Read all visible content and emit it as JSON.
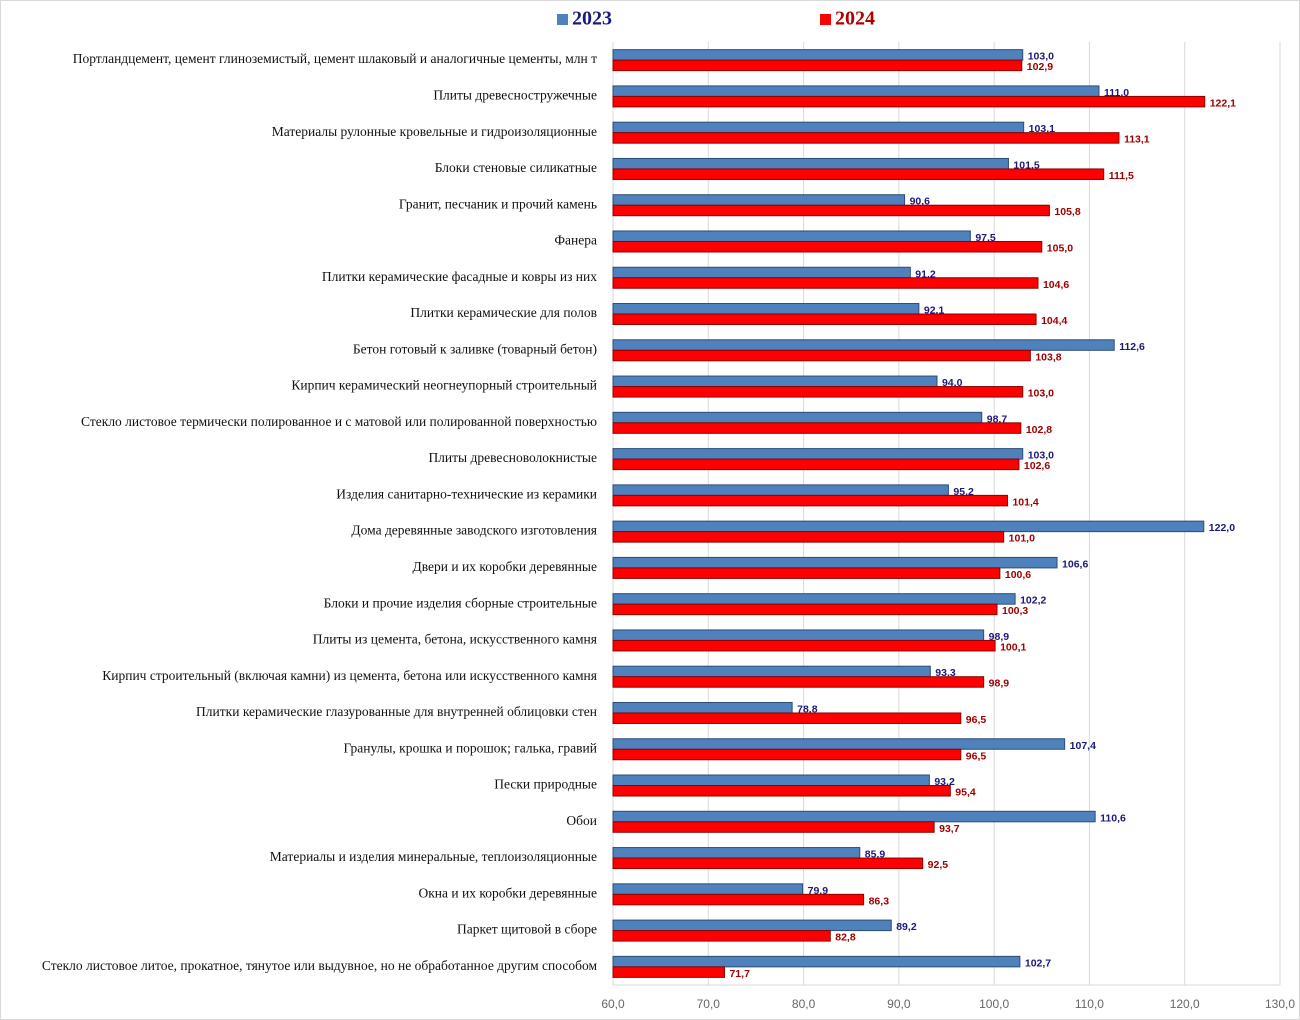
{
  "chart_data": {
    "type": "bar",
    "orientation": "horizontal",
    "categories": [
      "Портландцемент, цемент глиноземистый, цемент шлаковый и аналогичные цементы, млн т",
      "Плиты древесностружечные",
      "Материалы рулонные кровельные и гидроизоляционные",
      "Блоки стеновые силикатные",
      "Гранит, песчаник и прочий камень",
      "Фанера",
      "Плитки керамические фасадные и ковры из них",
      "Плитки керамические для полов",
      "Бетон готовый к заливке (товарный бетон)",
      "Кирпич керамический неогнеупорный строительный",
      "Стекло листовое термически полированное и с матовой или полированной поверхностью",
      "Плиты древесноволокнистые",
      "Изделия санитарно-технические из керамики",
      "Дома деревянные заводского изготовления",
      "Двери и их коробки деревянные",
      "Блоки и прочие изделия сборные строительные",
      "Плиты из цемента, бетона, искусственного камня",
      "Кирпич строительный (включая камни) из цемента, бетона или искусственного камня",
      "Плитки керамические глазурованные для внутренней облицовки стен",
      "Гранулы, крошка и порошок; галька, гравий",
      "Пески природные",
      "Обои",
      "Материалы и изделия минеральные, теплоизоляционные",
      "Окна и их коробки деревянные",
      "Паркет щитовой в сборе",
      "Стекло листовое литое, прокатное, тянутое или выдувное, но не обработанное другим способом"
    ],
    "series": [
      {
        "name": "2023",
        "color": "#4f81bd",
        "values": [
          103.0,
          111.0,
          103.1,
          101.5,
          90.6,
          97.5,
          91.2,
          92.1,
          112.6,
          94.0,
          98.7,
          103.0,
          95.2,
          122.0,
          106.6,
          102.2,
          98.9,
          93.3,
          78.8,
          107.4,
          93.2,
          110.6,
          85.9,
          79.9,
          89.2,
          102.7
        ],
        "value_labels": [
          "103,0",
          "111,0",
          "103,1",
          "101,5",
          "90,6",
          "97,5",
          "91,2",
          "92,1",
          "112,6",
          "94,0",
          "98,7",
          "103,0",
          "95,2",
          "122,0",
          "106,6",
          "102,2",
          "98,9",
          "93,3",
          "78,8",
          "107,4",
          "93,2",
          "110,6",
          "85,9",
          "79,9",
          "89,2",
          "102,7"
        ]
      },
      {
        "name": "2024",
        "color": "#ff0000",
        "values": [
          102.9,
          122.1,
          113.1,
          111.5,
          105.8,
          105.0,
          104.6,
          104.4,
          103.8,
          103.0,
          102.8,
          102.6,
          101.4,
          101.0,
          100.6,
          100.3,
          100.1,
          98.9,
          96.5,
          96.5,
          95.4,
          93.7,
          92.5,
          86.3,
          82.8,
          71.7
        ],
        "value_labels": [
          "102,9",
          "122,1",
          "113,1",
          "111,5",
          "105,8",
          "105,0",
          "104,6",
          "104,4",
          "103,8",
          "103,0",
          "102,8",
          "102,6",
          "101,4",
          "101,0",
          "100,6",
          "100,3",
          "100,1",
          "98,9",
          "96,5",
          "96,5",
          "95,4",
          "93,7",
          "92,5",
          "86,3",
          "82,8",
          "71,7"
        ]
      }
    ],
    "xlim": [
      60,
      130
    ],
    "xticks": [
      {
        "value": 60,
        "label": "60,0"
      },
      {
        "value": 70,
        "label": "70,0"
      },
      {
        "value": 80,
        "label": "80,0"
      },
      {
        "value": 90,
        "label": "90,0"
      },
      {
        "value": 100,
        "label": "100,0"
      },
      {
        "value": 110,
        "label": "110,0"
      },
      {
        "value": 120,
        "label": "120,0"
      },
      {
        "value": 130,
        "label": "130,0"
      }
    ],
    "grid": true,
    "legend": "top"
  }
}
